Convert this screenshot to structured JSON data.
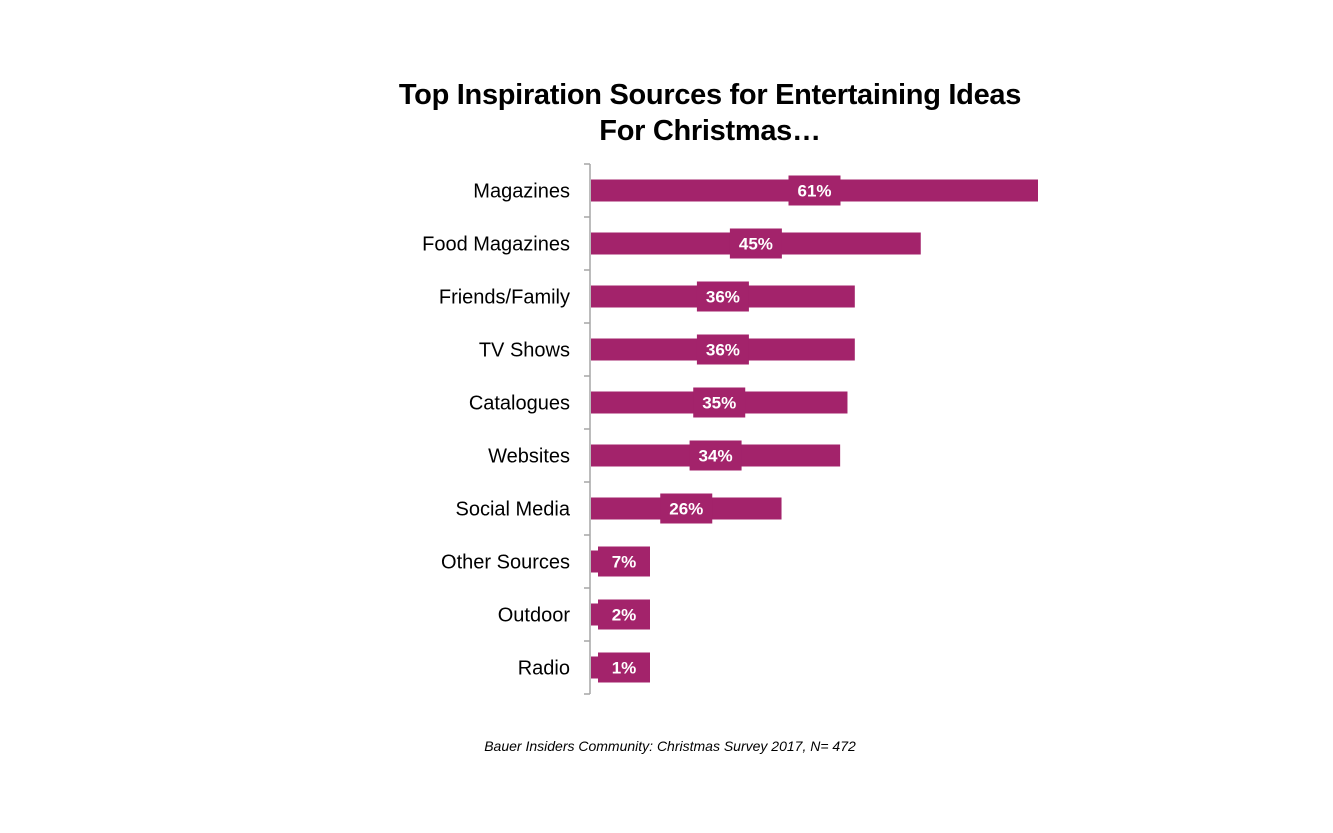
{
  "chart_data": {
    "type": "bar",
    "orientation": "horizontal",
    "title": "Top Inspiration Sources for Entertaining Ideas",
    "subtitle": "For Christmas…",
    "categories": [
      "Magazines",
      "Food Magazines",
      "Friends/Family",
      "TV Shows",
      "Catalogues",
      "Websites",
      "Social Media",
      "Other Sources",
      "Outdoor",
      "Radio"
    ],
    "values": [
      61,
      45,
      36,
      36,
      35,
      34,
      26,
      7,
      2,
      1
    ],
    "data_labels": [
      "61%",
      "45%",
      "36%",
      "36%",
      "35%",
      "34%",
      "26%",
      "7%",
      "2%",
      "1%"
    ],
    "xlim": [
      0,
      61
    ],
    "grid": false,
    "legend": "none",
    "bar_color": "#a3236b",
    "source": "Bauer Insiders Community: Christmas Survey 2017, N= 472"
  }
}
